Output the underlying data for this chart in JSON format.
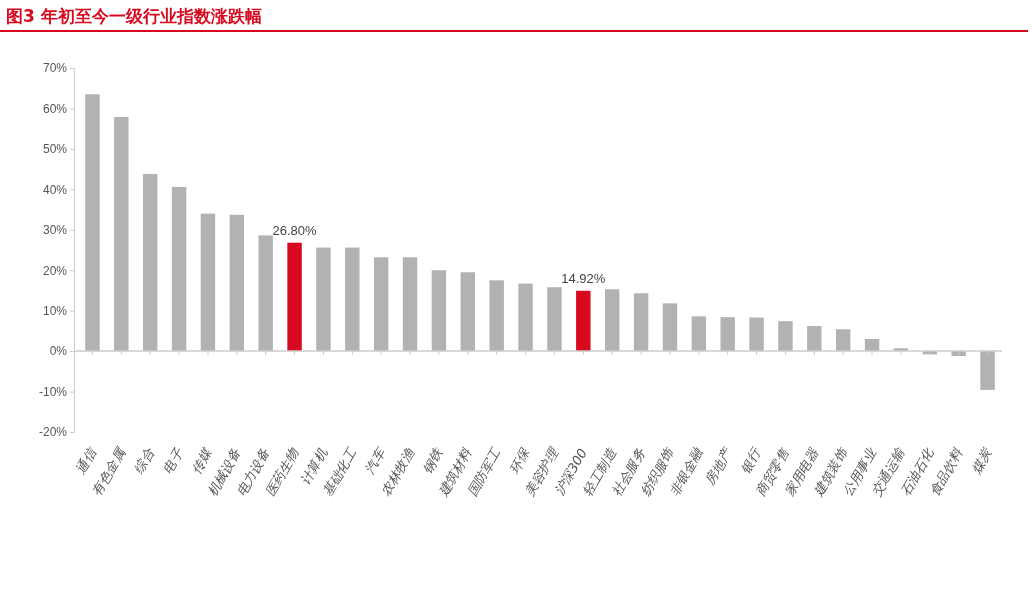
{
  "chart_data": {
    "type": "bar",
    "title": "图3  年初至今一级行业指数涨跌幅",
    "categories": [
      "通信",
      "有色金属",
      "综合",
      "电子",
      "传媒",
      "机械设备",
      "电力设备",
      "医药生物",
      "计算机",
      "基础化工",
      "汽车",
      "农林牧渔",
      "钢铁",
      "建筑材料",
      "国防军工",
      "环保",
      "美容护理",
      "沪深300",
      "轻工制造",
      "社会服务",
      "纺织服饰",
      "非银金融",
      "房地产",
      "银行",
      "商贸零售",
      "家用电器",
      "建筑装饰",
      "公用事业",
      "交通运输",
      "石油石化",
      "食品饮料",
      "煤炭"
    ],
    "values": [
      63.5,
      57.9,
      43.8,
      40.6,
      34.0,
      33.7,
      28.6,
      26.8,
      25.6,
      25.6,
      23.2,
      23.2,
      20.0,
      19.5,
      17.5,
      16.7,
      15.8,
      14.92,
      15.3,
      14.3,
      11.8,
      8.6,
      8.4,
      8.3,
      7.4,
      6.2,
      5.4,
      3.0,
      0.7,
      -0.8,
      -1.2,
      -9.6
    ],
    "colors": [
      "#b2b2b2",
      "#b2b2b2",
      "#b2b2b2",
      "#b2b2b2",
      "#b2b2b2",
      "#b2b2b2",
      "#b2b2b2",
      "#d7091f",
      "#b2b2b2",
      "#b2b2b2",
      "#b2b2b2",
      "#b2b2b2",
      "#b2b2b2",
      "#b2b2b2",
      "#b2b2b2",
      "#b2b2b2",
      "#b2b2b2",
      "#d7091f",
      "#b2b2b2",
      "#b2b2b2",
      "#b2b2b2",
      "#b2b2b2",
      "#b2b2b2",
      "#b2b2b2",
      "#b2b2b2",
      "#b2b2b2",
      "#b2b2b2",
      "#b2b2b2",
      "#b2b2b2",
      "#b2b2b2",
      "#b2b2b2",
      "#b2b2b2"
    ],
    "value_labels": [
      null,
      null,
      null,
      null,
      null,
      null,
      null,
      "26.80%",
      null,
      null,
      null,
      null,
      null,
      null,
      null,
      null,
      null,
      "14.92%",
      null,
      null,
      null,
      null,
      null,
      null,
      null,
      null,
      null,
      null,
      null,
      null,
      null,
      null
    ],
    "ylim": [
      -20,
      70
    ],
    "yticks": [
      {
        "value": -20,
        "label": "-20%"
      },
      {
        "value": -10,
        "label": "-10%"
      },
      {
        "value": 0,
        "label": "0%"
      },
      {
        "value": 10,
        "label": "10%"
      },
      {
        "value": 20,
        "label": "20%"
      },
      {
        "value": 30,
        "label": "30%"
      },
      {
        "value": 40,
        "label": "40%"
      },
      {
        "value": 50,
        "label": "50%"
      },
      {
        "value": 60,
        "label": "60%"
      },
      {
        "value": 70,
        "label": "70%"
      }
    ],
    "ref_lines": [
      {
        "axis": "y",
        "value": 0,
        "color": "#cccccc"
      }
    ],
    "grid": false
  }
}
